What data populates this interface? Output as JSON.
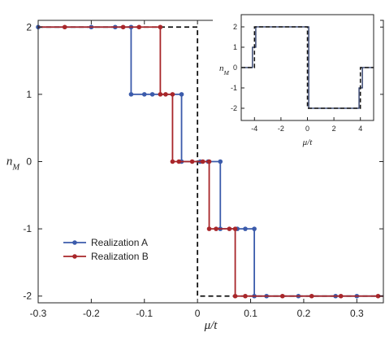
{
  "chart_data": [
    {
      "type": "line",
      "xlabel": "μ/t",
      "ylabel": "n_M",
      "xlim": [
        -0.3,
        0.35
      ],
      "ylim": [
        -2.1,
        2.1
      ],
      "xticks": [
        "-0.3",
        "-0.2",
        "-0.1",
        "0",
        "0.1",
        "0.2",
        "0.3"
      ],
      "xtick_values": [
        -0.3,
        -0.2,
        -0.1,
        0,
        0.1,
        0.2,
        0.3
      ],
      "yticks": [
        "2",
        "1",
        "0",
        "-1",
        "-2"
      ],
      "ytick_values": [
        2,
        1,
        0,
        -1,
        -2
      ],
      "grid": false,
      "legend_position": "lower-left",
      "reference_line": {
        "style": "dashed",
        "color": "#111111",
        "x": [
          -0.3,
          0.0,
          0.0,
          0.35
        ],
        "y": [
          2,
          2,
          -2,
          -2
        ]
      },
      "series": [
        {
          "name": "Realization A",
          "color": "#3b5bab",
          "step_x": [
            -0.3,
            -0.125,
            -0.125,
            -0.03,
            -0.03,
            0.043,
            0.043,
            0.107,
            0.107,
            0.35
          ],
          "step_y": [
            2,
            2,
            1,
            1,
            0,
            0,
            -1,
            -1,
            -2,
            -2
          ],
          "markers": [
            {
              "x": -0.3,
              "y": 2
            },
            {
              "x": -0.2,
              "y": 2
            },
            {
              "x": -0.155,
              "y": 2
            },
            {
              "x": -0.125,
              "y": 2
            },
            {
              "x": -0.125,
              "y": 1
            },
            {
              "x": -0.1,
              "y": 1
            },
            {
              "x": -0.085,
              "y": 1
            },
            {
              "x": -0.03,
              "y": 1
            },
            {
              "x": -0.03,
              "y": 0
            },
            {
              "x": 0.005,
              "y": 0
            },
            {
              "x": 0.02,
              "y": 0
            },
            {
              "x": 0.043,
              "y": 0
            },
            {
              "x": 0.043,
              "y": -1
            },
            {
              "x": 0.075,
              "y": -1
            },
            {
              "x": 0.09,
              "y": -1
            },
            {
              "x": 0.107,
              "y": -1
            },
            {
              "x": 0.107,
              "y": -2
            },
            {
              "x": 0.13,
              "y": -2
            },
            {
              "x": 0.19,
              "y": -2
            },
            {
              "x": 0.26,
              "y": -2
            },
            {
              "x": 0.3,
              "y": -2
            }
          ]
        },
        {
          "name": "Realization B",
          "color": "#a8262a",
          "step_x": [
            -0.3,
            -0.07,
            -0.07,
            -0.047,
            -0.047,
            0.022,
            0.022,
            0.071,
            0.071,
            0.35
          ],
          "step_y": [
            2,
            2,
            1,
            1,
            0,
            0,
            -1,
            -1,
            -2,
            -2
          ],
          "markers": [
            {
              "x": -0.25,
              "y": 2
            },
            {
              "x": -0.14,
              "y": 2
            },
            {
              "x": -0.11,
              "y": 2
            },
            {
              "x": -0.07,
              "y": 2
            },
            {
              "x": -0.07,
              "y": 1
            },
            {
              "x": -0.06,
              "y": 1
            },
            {
              "x": -0.047,
              "y": 1
            },
            {
              "x": -0.047,
              "y": 0
            },
            {
              "x": -0.035,
              "y": 0
            },
            {
              "x": -0.01,
              "y": 0
            },
            {
              "x": 0.01,
              "y": 0
            },
            {
              "x": 0.022,
              "y": 0
            },
            {
              "x": 0.022,
              "y": -1
            },
            {
              "x": 0.035,
              "y": -1
            },
            {
              "x": 0.06,
              "y": -1
            },
            {
              "x": 0.071,
              "y": -1
            },
            {
              "x": 0.071,
              "y": -2
            },
            {
              "x": 0.09,
              "y": -2
            },
            {
              "x": 0.16,
              "y": -2
            },
            {
              "x": 0.215,
              "y": -2
            },
            {
              "x": 0.27,
              "y": -2
            },
            {
              "x": 0.34,
              "y": -2
            }
          ]
        }
      ]
    },
    {
      "type": "line",
      "role": "inset",
      "xlabel": "μ/t",
      "ylabel": "n_M",
      "xlim": [
        -5,
        5
      ],
      "ylim": [
        -2.6,
        2.6
      ],
      "xticks": [
        "-4",
        "-2",
        "0",
        "2",
        "4"
      ],
      "xtick_values": [
        -4,
        -2,
        0,
        2,
        4
      ],
      "yticks": [
        "2",
        "1",
        "0",
        "-1",
        "-2"
      ],
      "ytick_values": [
        2,
        1,
        0,
        -1,
        -2
      ],
      "series": [
        {
          "style": "solid",
          "color": "#1f2f5f",
          "x": [
            -5,
            -4.15,
            -4.15,
            -3.9,
            -3.9,
            0.1,
            0.1,
            3.9,
            3.9,
            4.15,
            4.15,
            5
          ],
          "y": [
            0,
            0,
            1,
            1,
            2,
            2,
            -2,
            -2,
            -1,
            -1,
            0,
            0
          ]
        },
        {
          "style": "dashed",
          "color": "#111111",
          "x": [
            -5,
            -4,
            -4,
            0,
            0,
            4,
            4,
            5
          ],
          "y": [
            0,
            0,
            2,
            2,
            -2,
            -2,
            0,
            0
          ]
        }
      ]
    }
  ]
}
